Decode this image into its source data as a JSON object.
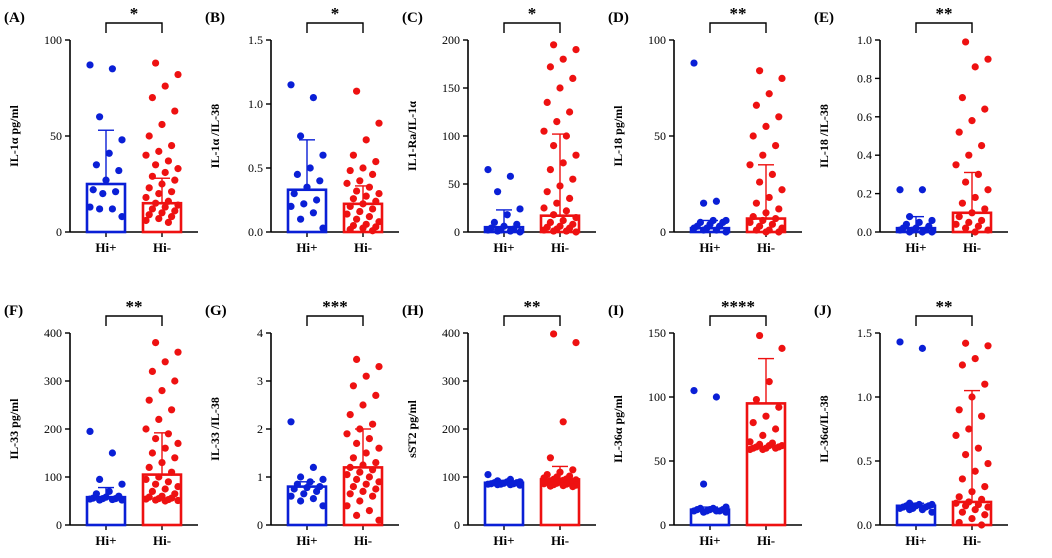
{
  "colors": {
    "group1": "#0a1fd6",
    "group2": "#ee1111",
    "axis": "#000000"
  },
  "chart_data": [
    {
      "type": "bar",
      "panel": "(A)",
      "ylabel": "IL-1α pg/ml",
      "categories": [
        "Hi+",
        "Hi-"
      ],
      "ylim": [
        0,
        100
      ],
      "yticks": [
        0,
        50,
        100
      ],
      "ytick_labels": [
        "0",
        "50",
        "100"
      ],
      "significance": "*",
      "series": [
        {
          "name": "Hi+",
          "mean": 25,
          "error_high": 53,
          "points": [
            87,
            85,
            60,
            48,
            41,
            35,
            32,
            27,
            22,
            21,
            20,
            13,
            12,
            12,
            8
          ]
        },
        {
          "name": "Hi-",
          "mean": 15,
          "error_high": 28,
          "points": [
            88,
            82,
            76,
            70,
            63,
            56,
            50,
            45,
            42,
            40,
            37,
            35,
            33,
            31,
            29,
            27,
            25,
            23,
            21,
            20,
            18,
            16,
            15,
            14,
            13,
            12,
            11,
            10,
            9,
            8,
            7,
            6,
            5
          ]
        }
      ]
    },
    {
      "type": "bar",
      "panel": "(B)",
      "ylabel": "IL-1α /IL-38",
      "categories": [
        "Hi+",
        "Hi-"
      ],
      "ylim": [
        0,
        1.5
      ],
      "yticks": [
        0,
        0.5,
        1,
        1.5
      ],
      "ytick_labels": [
        "0.0",
        "0.5",
        "1.0",
        "1.5"
      ],
      "significance": "*",
      "series": [
        {
          "name": "Hi+",
          "mean": 0.33,
          "error_high": 0.72,
          "points": [
            1.15,
            1.05,
            0.75,
            0.6,
            0.5,
            0.45,
            0.4,
            0.35,
            0.3,
            0.25,
            0.22,
            0.2,
            0.15,
            0.1,
            0.03
          ]
        },
        {
          "name": "Hi-",
          "mean": 0.22,
          "error_high": 0.36,
          "points": [
            1.1,
            0.85,
            0.72,
            0.6,
            0.55,
            0.5,
            0.48,
            0.45,
            0.4,
            0.38,
            0.35,
            0.32,
            0.3,
            0.28,
            0.26,
            0.24,
            0.22,
            0.2,
            0.18,
            0.16,
            0.14,
            0.12,
            0.1,
            0.08,
            0.06,
            0.05,
            0.04,
            0.03,
            0.02,
            0.01
          ]
        }
      ]
    },
    {
      "type": "bar",
      "panel": "(C)",
      "ylabel": "IL1-Ra/IL-1α",
      "categories": [
        "Hi+",
        "Hi-"
      ],
      "ylim": [
        0,
        200
      ],
      "yticks": [
        0,
        50,
        100,
        150,
        200
      ],
      "ytick_labels": [
        "0",
        "50",
        "100",
        "150",
        "200"
      ],
      "significance": "*",
      "series": [
        {
          "name": "Hi+",
          "mean": 5,
          "error_high": 23,
          "points": [
            65,
            58,
            42,
            24,
            18,
            10,
            8,
            6,
            4,
            3,
            2,
            2,
            1,
            1,
            0
          ]
        },
        {
          "name": "Hi-",
          "mean": 17,
          "error_high": 102,
          "points": [
            195,
            190,
            180,
            172,
            160,
            150,
            135,
            125,
            115,
            105,
            100,
            90,
            80,
            72,
            65,
            55,
            48,
            42,
            35,
            30,
            25,
            22,
            18,
            15,
            12,
            10,
            8,
            6,
            5,
            4,
            3,
            2,
            1,
            1,
            0
          ]
        }
      ]
    },
    {
      "type": "bar",
      "panel": "(D)",
      "ylabel": "IL-18 pg/ml",
      "categories": [
        "Hi+",
        "Hi-"
      ],
      "ylim": [
        0,
        100
      ],
      "yticks": [
        0,
        50,
        100
      ],
      "ytick_labels": [
        "0",
        "50",
        "100"
      ],
      "significance": "**",
      "series": [
        {
          "name": "Hi+",
          "mean": 2,
          "error_high": 6,
          "points": [
            88,
            16,
            15,
            6,
            6,
            5,
            5,
            4,
            3,
            3,
            2,
            2,
            1,
            1,
            0
          ]
        },
        {
          "name": "Hi-",
          "mean": 7,
          "error_high": 35,
          "points": [
            84,
            80,
            72,
            66,
            60,
            55,
            50,
            45,
            40,
            35,
            30,
            26,
            22,
            18,
            15,
            12,
            10,
            8,
            7,
            6,
            5,
            4,
            3,
            2,
            1,
            1,
            0,
            0
          ]
        }
      ]
    },
    {
      "type": "bar",
      "panel": "(E)",
      "ylabel": "IL-18 /IL-38",
      "categories": [
        "Hi+",
        "Hi-"
      ],
      "ylim": [
        0,
        1
      ],
      "yticks": [
        0,
        0.2,
        0.4,
        0.6,
        0.8,
        1
      ],
      "ytick_labels": [
        "0.0",
        "0.2",
        "0.4",
        "0.6",
        "0.8",
        "1.0"
      ],
      "significance": "**",
      "series": [
        {
          "name": "Hi+",
          "mean": 0.02,
          "error_high": 0.08,
          "points": [
            0.22,
            0.22,
            0.08,
            0.06,
            0.05,
            0.04,
            0.03,
            0.02,
            0.02,
            0.01,
            0.01,
            0.01,
            0,
            0,
            0
          ]
        },
        {
          "name": "Hi-",
          "mean": 0.1,
          "error_high": 0.31,
          "points": [
            0.99,
            0.9,
            0.86,
            0.7,
            0.64,
            0.58,
            0.52,
            0.45,
            0.4,
            0.35,
            0.3,
            0.26,
            0.22,
            0.18,
            0.15,
            0.12,
            0.1,
            0.08,
            0.06,
            0.05,
            0.04,
            0.03,
            0.02,
            0.01,
            0
          ]
        }
      ]
    },
    {
      "type": "bar",
      "panel": "(F)",
      "ylabel": "IL-33 pg/ml",
      "categories": [
        "Hi+",
        "Hi-"
      ],
      "ylim": [
        0,
        400
      ],
      "yticks": [
        0,
        100,
        200,
        300,
        400
      ],
      "ytick_labels": [
        "0",
        "100",
        "200",
        "300",
        "400"
      ],
      "significance": "**",
      "series": [
        {
          "name": "Hi+",
          "mean": 58,
          "error_high": 78,
          "points": [
            195,
            150,
            95,
            85,
            70,
            65,
            60,
            58,
            56,
            55,
            55,
            54,
            53,
            52,
            52
          ]
        },
        {
          "name": "Hi-",
          "mean": 105,
          "error_high": 192,
          "points": [
            380,
            360,
            340,
            320,
            300,
            280,
            260,
            240,
            220,
            200,
            190,
            180,
            170,
            160,
            150,
            140,
            130,
            120,
            110,
            100,
            95,
            90,
            85,
            80,
            75,
            70,
            65,
            60,
            58,
            56,
            55,
            54,
            53,
            52,
            51,
            50
          ]
        }
      ]
    },
    {
      "type": "bar",
      "panel": "(G)",
      "ylabel": "IL-33 /IL-38",
      "categories": [
        "Hi+",
        "Hi-"
      ],
      "ylim": [
        0,
        4
      ],
      "yticks": [
        0,
        1,
        2,
        3,
        4
      ],
      "ytick_labels": [
        "0",
        "1",
        "2",
        "3",
        "4"
      ],
      "significance": "***",
      "series": [
        {
          "name": "Hi+",
          "mean": 0.8,
          "error_high": 0.9,
          "points": [
            2.15,
            1.2,
            1.0,
            0.95,
            0.9,
            0.85,
            0.8,
            0.78,
            0.75,
            0.7,
            0.65,
            0.6,
            0.55,
            0.5,
            0.4
          ]
        },
        {
          "name": "Hi-",
          "mean": 1.2,
          "error_high": 2.0,
          "points": [
            3.45,
            3.3,
            3.1,
            2.9,
            2.7,
            2.5,
            2.3,
            2.1,
            2.0,
            1.9,
            1.8,
            1.7,
            1.6,
            1.5,
            1.4,
            1.3,
            1.25,
            1.2,
            1.15,
            1.1,
            1.05,
            1.0,
            0.95,
            0.9,
            0.85,
            0.8,
            0.75,
            0.7,
            0.65,
            0.6,
            0.5,
            0.4,
            0.3,
            0.2,
            0.1
          ]
        }
      ]
    },
    {
      "type": "bar",
      "panel": "(H)",
      "ylabel": "sST2 pg/ml",
      "categories": [
        "Hi+",
        "Hi-"
      ],
      "ylim": [
        0,
        400
      ],
      "yticks": [
        0,
        100,
        200,
        300,
        400
      ],
      "ytick_labels": [
        "0",
        "100",
        "200",
        "300",
        "400"
      ],
      "significance": "**",
      "series": [
        {
          "name": "Hi+",
          "mean": 88,
          "error_high": 93,
          "points": [
            105,
            95,
            92,
            90,
            90,
            88,
            88,
            87,
            86,
            86,
            85,
            85,
            84,
            84,
            83
          ]
        },
        {
          "name": "Hi-",
          "mean": 95,
          "error_high": 122,
          "points": [
            398,
            380,
            215,
            140,
            115,
            110,
            105,
            102,
            100,
            98,
            96,
            95,
            94,
            93,
            92,
            91,
            90,
            89,
            88,
            87,
            86,
            85,
            84,
            83,
            82,
            81,
            80
          ]
        }
      ]
    },
    {
      "type": "bar",
      "panel": "(I)",
      "ylabel": "IL-36α pg/ml",
      "categories": [
        "Hi+",
        "Hi-"
      ],
      "ylim": [
        0,
        150
      ],
      "yticks": [
        0,
        50,
        100,
        150
      ],
      "ytick_labels": [
        "0",
        "50",
        "100",
        "150"
      ],
      "significance": "****",
      "series": [
        {
          "name": "Hi+",
          "mean": 12,
          "error_high": 14,
          "points": [
            105,
            100,
            32,
            14,
            13,
            13,
            12,
            12,
            12,
            11,
            11,
            11,
            11,
            10,
            10
          ]
        },
        {
          "name": "Hi-",
          "mean": 95,
          "error_high": 130,
          "points": [
            148,
            138,
            112,
            98,
            92,
            85,
            80,
            75,
            70,
            65,
            64,
            63,
            62,
            62,
            61,
            61,
            60,
            60,
            60,
            59,
            59
          ]
        }
      ]
    },
    {
      "type": "bar",
      "panel": "(J)",
      "ylabel": "IL-36α/IL-38",
      "categories": [
        "Hi+",
        "Hi-"
      ],
      "ylim": [
        0,
        1.5
      ],
      "yticks": [
        0,
        0.5,
        1,
        1.5
      ],
      "ytick_labels": [
        "0.0",
        "0.5",
        "1.0",
        "1.5"
      ],
      "significance": "**",
      "series": [
        {
          "name": "Hi+",
          "mean": 0.15,
          "error_high": 0.17,
          "points": [
            1.43,
            1.38,
            0.17,
            0.16,
            0.16,
            0.15,
            0.15,
            0.15,
            0.14,
            0.14,
            0.13,
            0.13,
            0.12,
            0.12,
            0.1
          ]
        },
        {
          "name": "Hi-",
          "mean": 0.18,
          "error_high": 1.05,
          "points": [
            1.42,
            1.4,
            1.3,
            1.25,
            1.1,
            1.0,
            0.9,
            0.85,
            0.75,
            0.7,
            0.6,
            0.55,
            0.48,
            0.42,
            0.36,
            0.3,
            0.26,
            0.22,
            0.2,
            0.18,
            0.17,
            0.16,
            0.15,
            0.14,
            0.12,
            0.1,
            0.08,
            0.05,
            0.02,
            0
          ]
        }
      ]
    }
  ]
}
